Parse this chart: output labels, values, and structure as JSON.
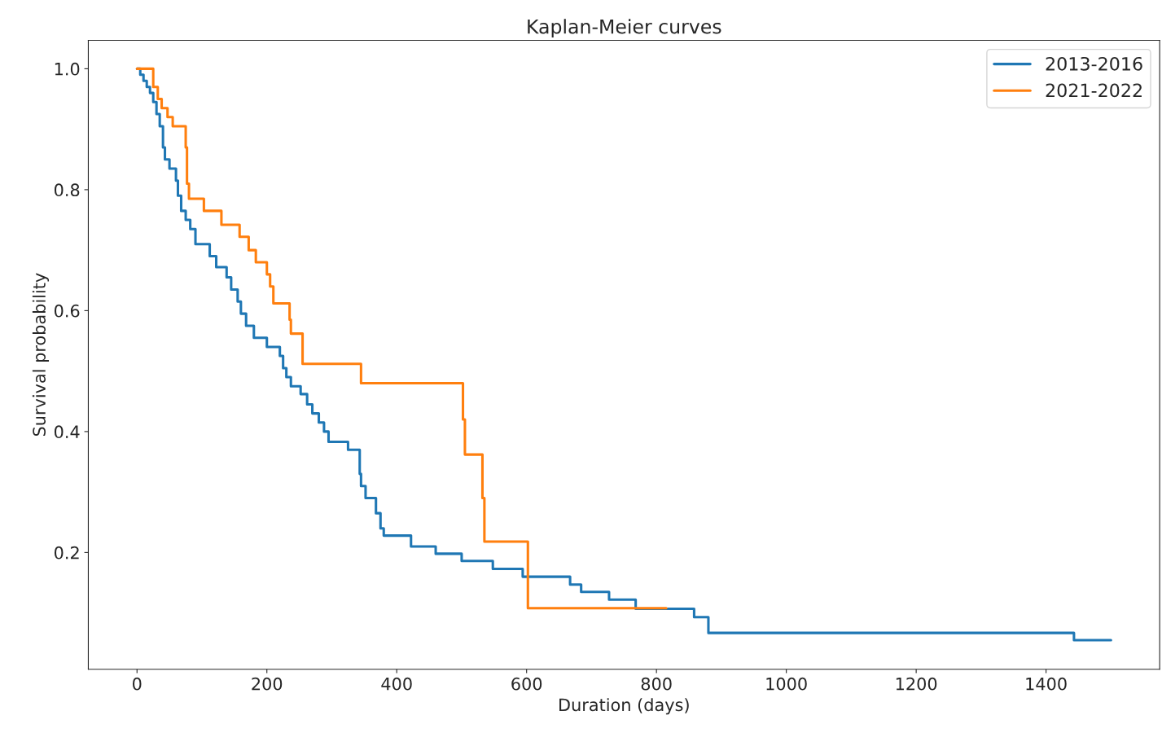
{
  "chart_data": {
    "type": "step",
    "title": "Kaplan-Meier curves",
    "xlabel": "Duration (days)",
    "ylabel": "Survival probability",
    "xlim": [
      -75,
      1575
    ],
    "ylim": [
      0.007,
      1.047
    ],
    "xticks": [
      0,
      200,
      400,
      600,
      800,
      1000,
      1200,
      1400
    ],
    "yticks": [
      0.2,
      0.4,
      0.6,
      0.8,
      {
        "value": 1,
        "label": "1.0"
      }
    ],
    "grid": false,
    "legend": "top right",
    "marker": "none",
    "line_style": "solid",
    "series": [
      {
        "name": "2013-2016",
        "color": "#1f77b4",
        "x": [
          0,
          5,
          10,
          15,
          20,
          25,
          30,
          35,
          40,
          43,
          50,
          60,
          63,
          68,
          75,
          82,
          90,
          112,
          122,
          138,
          145,
          155,
          160,
          168,
          180,
          200,
          220,
          225,
          230,
          237,
          252,
          262,
          270,
          280,
          288,
          295,
          325,
          343,
          345,
          352,
          368,
          375,
          380,
          422,
          460,
          500,
          548,
          594,
          667,
          684,
          727,
          768,
          858,
          880,
          1443,
          1500
        ],
        "values": [
          1.0,
          0.99,
          0.98,
          0.97,
          0.96,
          0.945,
          0.925,
          0.905,
          0.87,
          0.85,
          0.835,
          0.815,
          0.79,
          0.765,
          0.75,
          0.735,
          0.71,
          0.69,
          0.672,
          0.655,
          0.635,
          0.615,
          0.595,
          0.575,
          0.555,
          0.54,
          0.525,
          0.505,
          0.49,
          0.475,
          0.462,
          0.445,
          0.43,
          0.415,
          0.4,
          0.383,
          0.37,
          0.33,
          0.31,
          0.29,
          0.265,
          0.24,
          0.228,
          0.21,
          0.198,
          0.186,
          0.173,
          0.16,
          0.147,
          0.135,
          0.122,
          0.107,
          0.093,
          0.067,
          0.055,
          0.055
        ]
      },
      {
        "name": "2021-2022",
        "color": "#ff7f0e",
        "x": [
          0,
          25,
          32,
          38,
          47,
          55,
          75,
          77,
          80,
          103,
          130,
          158,
          172,
          183,
          200,
          205,
          210,
          235,
          237,
          255,
          345,
          502,
          505,
          532,
          535,
          602,
          815
        ],
        "values": [
          1.0,
          0.97,
          0.95,
          0.935,
          0.92,
          0.905,
          0.87,
          0.81,
          0.785,
          0.765,
          0.742,
          0.722,
          0.7,
          0.68,
          0.66,
          0.64,
          0.612,
          0.585,
          0.562,
          0.512,
          0.48,
          0.42,
          0.362,
          0.29,
          0.218,
          0.108,
          0.108
        ]
      }
    ]
  }
}
